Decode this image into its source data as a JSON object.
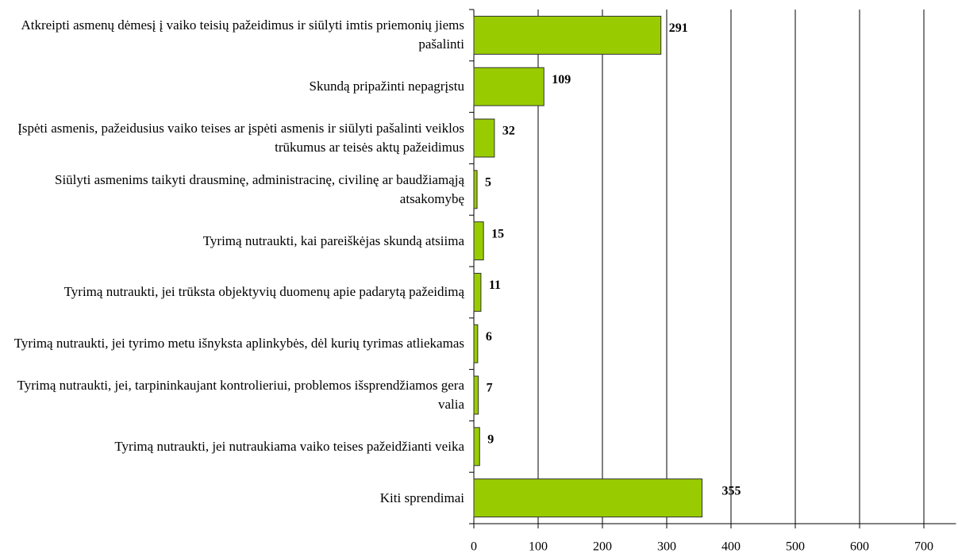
{
  "chart_data": {
    "type": "barh",
    "categories": [
      "Atkreipti asmenų dėmesį į vaiko teisių pažeidimus ir siūlyti imtis priemonių jiems pašalinti",
      "Skundą pripažinti nepagrįstu",
      "Įspėti asmenis, pažeidusius vaiko teises ar įspėti asmenis ir siūlyti pašalinti veiklos trūkumus ar teisės aktų pažeidimus",
      "Siūlyti asmenims taikyti drausminę, administracinę, civilinę ar baudžiamąją atsakomybę",
      "Tyrimą nutraukti, kai pareiškėjas skundą atsiima",
      "Tyrimą nutraukti, jei trūksta objektyvių duomenų apie padarytą pažeidimą",
      "Tyrimą nutraukti, jei tyrimo metu išnyksta aplinkybės, dėl kurių tyrimas atliekamas",
      "Tyrimą nutraukti, jei, tarpininkaujant kontrolieriui, problemos išsprendžiamos gera valia",
      "Tyrimą nutraukti, jei nutraukiama vaiko teises pažeidžianti veika",
      "Kiti sprendimai"
    ],
    "values": [
      291,
      109,
      32,
      5,
      15,
      11,
      6,
      7,
      9,
      355
    ],
    "color": "#99cc00",
    "xlim": [
      0,
      750
    ],
    "xticks": [
      0,
      100,
      200,
      300,
      400,
      500,
      600,
      700
    ],
    "grid": true
  }
}
